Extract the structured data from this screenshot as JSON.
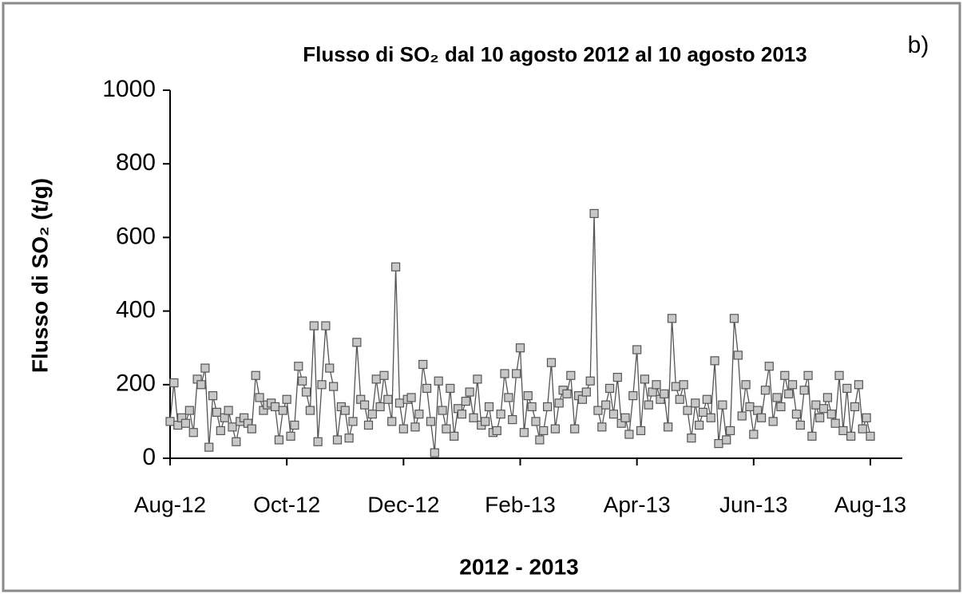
{
  "chart_data": {
    "type": "line",
    "title": "Flusso di SO₂ dal 10 agosto 2012 al 10 agosto 2013",
    "annotation": "b)",
    "x_label": "2012 - 2013",
    "y_label": "Flusso di SO₂ (t/g)",
    "categories": [
      "Aug-12",
      null,
      null,
      null,
      null,
      null,
      null,
      null,
      null,
      null,
      null,
      null,
      null,
      null,
      null,
      null,
      null,
      null,
      null,
      null,
      null,
      null,
      null,
      null,
      null,
      null,
      null,
      null,
      null,
      null,
      "Oct-12",
      null,
      null,
      null,
      null,
      null,
      null,
      null,
      null,
      null,
      null,
      null,
      null,
      null,
      null,
      null,
      null,
      null,
      null,
      null,
      null,
      null,
      null,
      null,
      null,
      null,
      null,
      null,
      null,
      null,
      "Dec-12",
      null,
      null,
      null,
      null,
      null,
      null,
      null,
      null,
      null,
      null,
      null,
      null,
      null,
      null,
      null,
      null,
      null,
      null,
      null,
      null,
      null,
      null,
      null,
      null,
      null,
      null,
      null,
      null,
      null,
      "Feb-13",
      null,
      null,
      null,
      null,
      null,
      null,
      null,
      null,
      null,
      null,
      null,
      null,
      null,
      null,
      null,
      null,
      null,
      null,
      null,
      null,
      null,
      null,
      null,
      null,
      null,
      null,
      null,
      null,
      null,
      "Apr-13",
      null,
      null,
      null,
      null,
      null,
      null,
      null,
      null,
      null,
      null,
      null,
      null,
      null,
      null,
      null,
      null,
      null,
      null,
      null,
      null,
      null,
      null,
      null,
      null,
      null,
      null,
      null,
      null,
      null,
      "Jun-13",
      null,
      null,
      null,
      null,
      null,
      null,
      null,
      null,
      null,
      null,
      null,
      null,
      null,
      null,
      null,
      null,
      null,
      null,
      null,
      null,
      null,
      null,
      null,
      null,
      null,
      null,
      null,
      null,
      null,
      "Aug-13"
    ],
    "series": [
      {
        "color": "#555555",
        "marker_color": "#c8c8c8",
        "values": [
          100,
          205,
          90,
          110,
          95,
          130,
          70,
          215,
          200,
          245,
          30,
          170,
          125,
          75,
          110,
          130,
          85,
          45,
          100,
          110,
          95,
          80,
          225,
          165,
          130,
          145,
          150,
          140,
          50,
          130,
          160,
          60,
          90,
          250,
          210,
          180,
          130,
          360,
          45,
          200,
          360,
          245,
          195,
          50,
          140,
          130,
          55,
          100,
          315,
          160,
          145,
          90,
          120,
          215,
          140,
          225,
          160,
          100,
          520,
          150,
          80,
          160,
          165,
          85,
          120,
          255,
          190,
          100,
          15,
          210,
          130,
          80,
          190,
          60,
          135,
          120,
          155,
          180,
          110,
          215,
          90,
          100,
          140,
          70,
          75,
          120,
          230,
          165,
          105,
          230,
          300,
          70,
          170,
          140,
          100,
          50,
          75,
          140,
          260,
          80,
          150,
          185,
          175,
          225,
          80,
          170,
          160,
          180,
          210,
          665,
          130,
          85,
          145,
          190,
          120,
          220,
          95,
          110,
          65,
          170,
          295,
          75,
          215,
          145,
          180,
          200,
          160,
          175,
          85,
          380,
          195,
          160,
          200,
          130,
          55,
          150,
          90,
          125,
          160,
          110,
          265,
          40,
          145,
          50,
          75,
          380,
          280,
          115,
          200,
          140,
          65,
          130,
          110,
          185,
          250,
          100,
          165,
          140,
          225,
          175,
          200,
          120,
          90,
          185,
          225,
          60,
          145,
          110,
          135,
          165,
          120,
          95,
          225,
          75,
          190,
          60,
          140,
          200,
          80,
          110,
          60
        ]
      }
    ],
    "ylim": [
      0,
      1000
    ],
    "yticks": [
      0,
      200,
      400,
      600,
      800,
      1000
    ],
    "grid": false
  }
}
